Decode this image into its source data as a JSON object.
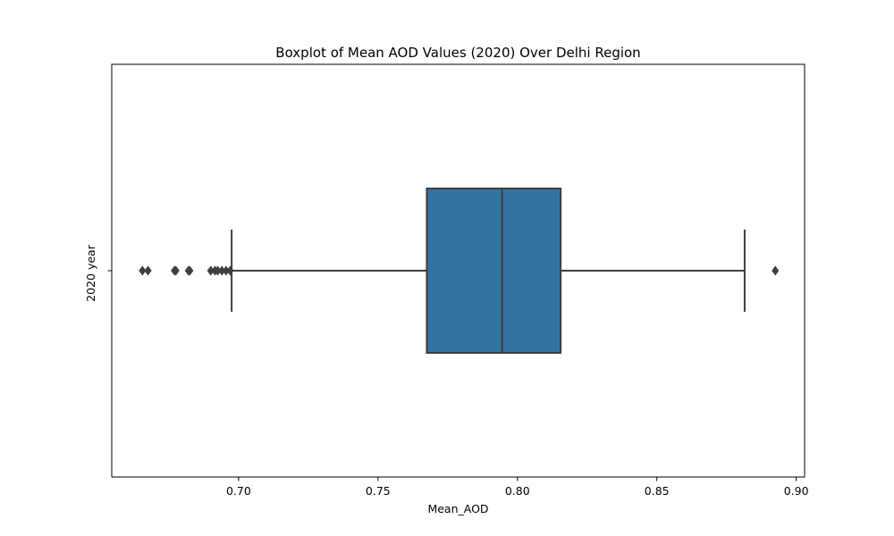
{
  "chart_data": {
    "type": "boxplot",
    "title": "Boxplot of Mean AOD Values (2020) Over Delhi Region",
    "xlabel": "Mean_AOD",
    "ylabel": "2020 year",
    "xlim": [
      0.6545,
      0.903
    ],
    "xticks": [
      0.7,
      0.75,
      0.8,
      0.85,
      0.9
    ],
    "xtick_labels": [
      "0.70",
      "0.75",
      "0.80",
      "0.85",
      "0.90"
    ],
    "grid": false,
    "box": {
      "whisker_low": 0.6975,
      "q1": 0.7675,
      "median": 0.7945,
      "q3": 0.8155,
      "whisker_high": 0.8815
    },
    "outliers": [
      0.6655,
      0.6675,
      0.677,
      0.6775,
      0.682,
      0.6825,
      0.69,
      0.6915,
      0.6925,
      0.694,
      0.6955,
      0.697,
      0.8925
    ],
    "colors": {
      "box_fill": "#3274a1",
      "line": "#3f3f3f",
      "outlier": "#3f3f3f",
      "frame": "#000000"
    }
  }
}
